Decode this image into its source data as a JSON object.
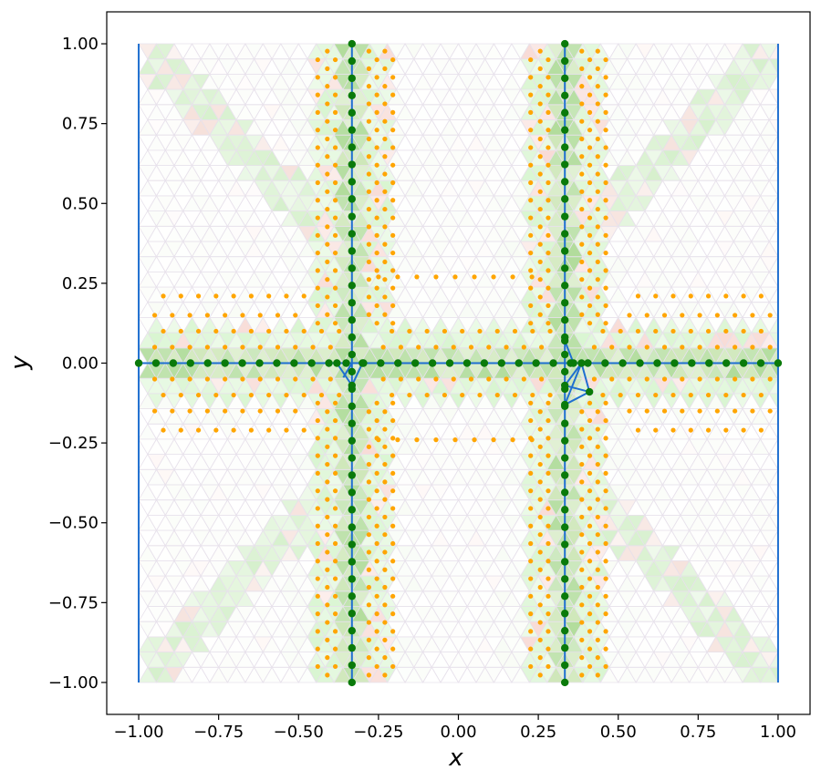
{
  "chart_data": {
    "type": "scatter",
    "title": "",
    "xlabel": "x",
    "ylabel": "y",
    "xlim": [
      -1.1,
      1.1
    ],
    "ylim": [
      -1.1,
      1.1
    ],
    "xticks": [
      -1.0,
      -0.75,
      -0.5,
      -0.25,
      0.0,
      0.25,
      0.5,
      0.75,
      1.0
    ],
    "yticks": [
      -1.0,
      -0.75,
      -0.5,
      -0.25,
      0.0,
      0.25,
      0.5,
      0.75,
      1.0
    ],
    "xtick_labels": [
      "−1.00",
      "−0.75",
      "−0.50",
      "−0.25",
      "0.00",
      "0.25",
      "0.50",
      "0.75",
      "1.00"
    ],
    "ytick_labels": [
      "−1.00",
      "−0.75",
      "−0.50",
      "−0.25",
      "0.00",
      "0.25",
      "0.50",
      "0.75",
      "1.00"
    ],
    "grid": false,
    "legend": "none",
    "colors": {
      "interface_line": "#1f6fd0",
      "interface_nodes": "#0a7a0a",
      "refined_points": "#ffa500",
      "mesh_edges": "#e8e2ec",
      "cell_fill_green": "#b4e6a0",
      "cell_fill_red": "#f4c8c0"
    },
    "series": [
      {
        "name": "interface segments",
        "kind": "line",
        "segments": [
          [
            [
              -1.0,
              -1.0
            ],
            [
              -1.0,
              1.0
            ]
          ],
          [
            [
              1.0,
              -1.0
            ],
            [
              1.0,
              1.0
            ]
          ],
          [
            [
              -1.0,
              0.0
            ],
            [
              1.0,
              0.0
            ]
          ],
          [
            [
              -0.333,
              1.0
            ],
            [
              -0.333,
              -1.0
            ]
          ],
          [
            [
              0.333,
              1.0
            ],
            [
              0.333,
              -1.0
            ]
          ],
          [
            [
              -0.333,
              -0.07
            ],
            [
              -0.38,
              0.0
            ]
          ],
          [
            [
              -0.333,
              -0.07
            ],
            [
              -0.3,
              0.0
            ]
          ],
          [
            [
              -0.333,
              0.0
            ],
            [
              -0.36,
              -0.045
            ]
          ],
          [
            [
              0.333,
              -0.07
            ],
            [
              0.385,
              0.0
            ]
          ],
          [
            [
              0.333,
              0.07
            ],
            [
              0.36,
              0.0
            ]
          ],
          [
            [
              0.333,
              -0.07
            ],
            [
              0.41,
              -0.09
            ]
          ],
          [
            [
              0.333,
              -0.13
            ],
            [
              0.385,
              0.0
            ]
          ],
          [
            [
              0.385,
              0.0
            ],
            [
              0.41,
              -0.09
            ]
          ],
          [
            [
              0.333,
              -0.13
            ],
            [
              0.41,
              -0.09
            ]
          ]
        ]
      },
      {
        "name": "interface nodes",
        "kind": "scatter",
        "points": []
      },
      {
        "name": "refined points",
        "kind": "scatter",
        "points": []
      }
    ]
  }
}
